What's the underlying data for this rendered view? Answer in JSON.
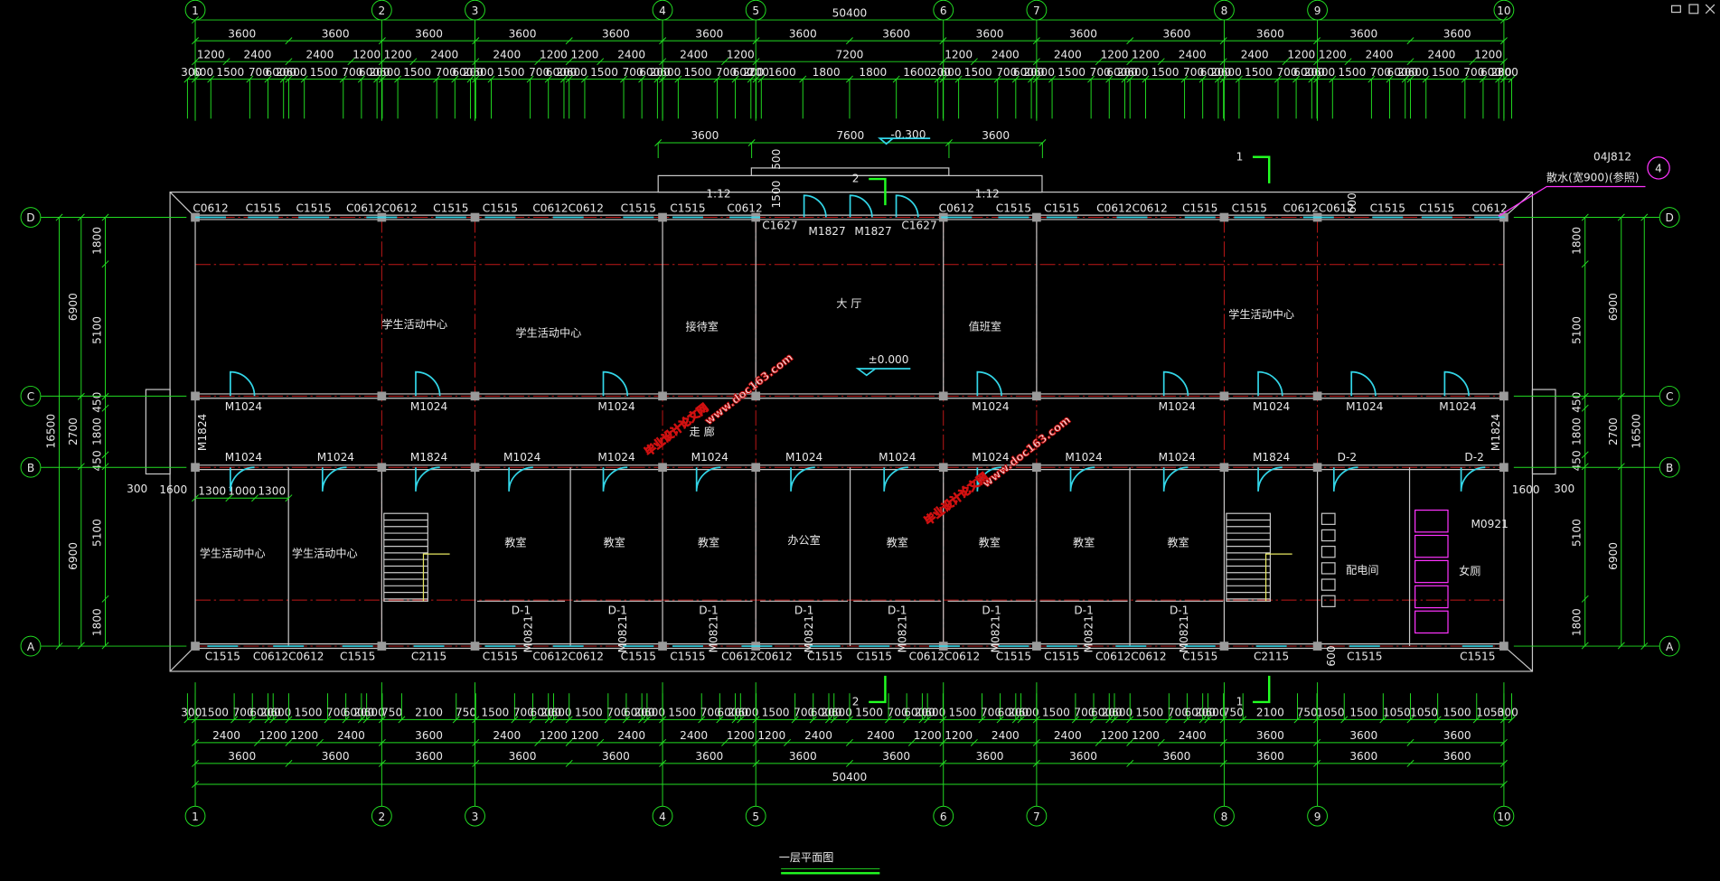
{
  "axes": {
    "columns": [
      "1",
      "2",
      "3",
      "4",
      "5",
      "6",
      "7",
      "8",
      "9",
      "10"
    ],
    "rows": [
      "A",
      "B",
      "C",
      "D"
    ]
  },
  "dimensions": {
    "top": {
      "total": 50400,
      "bays": [
        3600,
        3600,
        3600,
        3600,
        3600,
        3600,
        3600,
        3600,
        3600,
        3600,
        3600,
        3600,
        3600,
        3600
      ],
      "parts": [
        1200,
        2400,
        2400,
        1200,
        1200,
        2400,
        2400,
        1200,
        1200,
        2400,
        2400,
        1200,
        7200,
        1200,
        2400,
        2400,
        1200,
        1200,
        2400,
        2400,
        1200,
        1200,
        2400,
        2400,
        1200
      ],
      "details": [
        300,
        600,
        1500,
        700,
        600,
        200,
        600,
        1500,
        700,
        600,
        200,
        600,
        1500,
        700,
        600,
        200,
        600,
        1500,
        700,
        600,
        200,
        600,
        1500,
        700,
        600,
        200,
        600,
        1500,
        700,
        600,
        200,
        200,
        1600,
        1800,
        1800,
        1600,
        200,
        600,
        1500,
        700,
        600,
        200,
        600,
        1500,
        700,
        600,
        200,
        600,
        1500,
        700,
        600,
        200,
        600,
        1500,
        700,
        600,
        200,
        600,
        1500,
        700,
        600,
        200,
        600,
        1500,
        700,
        600,
        200,
        300
      ]
    },
    "bottom": {
      "total": 50400,
      "bays": [
        3600,
        3600,
        3600,
        3600,
        3600,
        3600,
        3600,
        3600,
        3600,
        3600,
        3600,
        3600,
        3600,
        3600
      ],
      "parts": [
        2400,
        1200,
        1200,
        2400,
        3600,
        2400,
        1200,
        1200,
        2400,
        2400,
        1200,
        1200,
        2400,
        2400,
        1200,
        1200,
        2400,
        2400,
        1200,
        1200,
        2400,
        3600,
        3600,
        3600
      ],
      "details": [
        300,
        1500,
        700,
        600,
        200,
        600,
        1500,
        700,
        600,
        200,
        600,
        750,
        2100,
        750,
        1500,
        700,
        600,
        200,
        600,
        1500,
        700,
        600,
        200,
        600,
        1500,
        700,
        600,
        200,
        600,
        1500,
        700,
        600,
        200,
        600,
        1500,
        700,
        600,
        200,
        600,
        1500,
        700,
        600,
        200,
        600,
        1500,
        700,
        600,
        200,
        600,
        1500,
        700,
        600,
        200,
        600,
        750,
        2100,
        750,
        1050,
        1500,
        1050,
        1050,
        1500,
        1050,
        300
      ]
    },
    "porch": [
      3600,
      7600,
      3600
    ],
    "left": {
      "total": 16500,
      "spans": [
        6900,
        2700,
        6900
      ],
      "parts": [
        1800,
        5100,
        450,
        1800,
        450,
        5100,
        1800
      ]
    },
    "right": {
      "total": 16500,
      "spans": [
        6900,
        2700,
        6900
      ],
      "parts": [
        1800,
        5100,
        450,
        1800,
        450,
        5100,
        1800
      ]
    },
    "stair_room": [
      1300,
      1000,
      1300
    ],
    "misc": [
      500,
      1500,
      600,
      600,
      1600,
      300,
      1600,
      300
    ]
  },
  "windows": {
    "north": [
      "C0612",
      "C1515",
      "C1515",
      "C0612C0612",
      "C1515",
      "C1515",
      "C0612C0612",
      "C1515",
      "C1515",
      "C0612",
      "C0612",
      "C1515",
      "C1515",
      "C0612C0612",
      "C1515",
      "C1515",
      "C0612C0612",
      "C1515",
      "C1515",
      "C0612"
    ],
    "south": [
      "C1515",
      "C0612C0612",
      "C1515",
      "C2115",
      "C1515",
      "C0612C0612",
      "C1515",
      "C1515",
      "C0612C0612",
      "C1515",
      "C1515",
      "C0612C0612",
      "C1515",
      "C1515",
      "C0612C0612",
      "C1515",
      "C2115",
      "C1515",
      "C1515"
    ]
  },
  "doors": {
    "corridor_north": [
      "M1024",
      "M1024",
      "M1024",
      "M1024",
      "M1024",
      "M1024",
      "M1024",
      "M1024"
    ],
    "corridor_south": [
      "M1024",
      "M1024",
      "M1824",
      "M1024",
      "M1024",
      "M1024",
      "M1024",
      "M1024",
      "M1024",
      "M1024",
      "M1024",
      "M1824",
      "D-2",
      "D-2"
    ],
    "lobby": [
      "C1627",
      "M1827",
      "M1827",
      "C1627"
    ],
    "ends": [
      "M1824",
      "M1824"
    ],
    "toilet": "M0921",
    "closets": [
      "D-1",
      "D-1",
      "D-1",
      "D-1",
      "D-1",
      "D-1",
      "D-1",
      "D-1"
    ],
    "wc": [
      "M0821",
      "M0821",
      "M0821",
      "M0821",
      "M0821",
      "M0821",
      "M0821",
      "M0821"
    ]
  },
  "rooms": [
    "学生活动中心",
    "学生活动中心",
    "接待室",
    "大 厅",
    "值班室",
    "学生活动中心",
    "走 廊",
    "学生活动中心",
    "学生活动中心",
    "教室",
    "教室",
    "教室",
    "办公室",
    "教室",
    "教室",
    "教室",
    "教室",
    "配电间",
    "女厕"
  ],
  "levels": {
    "floor": "±0.000",
    "outdoor": "-0.300"
  },
  "ramps": [
    "1:12",
    "1:12"
  ],
  "sections": [
    "1",
    "1",
    "2",
    "2"
  ],
  "detail_ref": {
    "code": "04J812",
    "note": "散水(宽900)(参照)",
    "index": "4"
  },
  "title": "一层平面图",
  "watermarks": [
    [
      "毕业设计论文网",
      "www.doc163.com"
    ],
    [
      "毕业设计论文网",
      "www.doc163.com"
    ]
  ]
}
